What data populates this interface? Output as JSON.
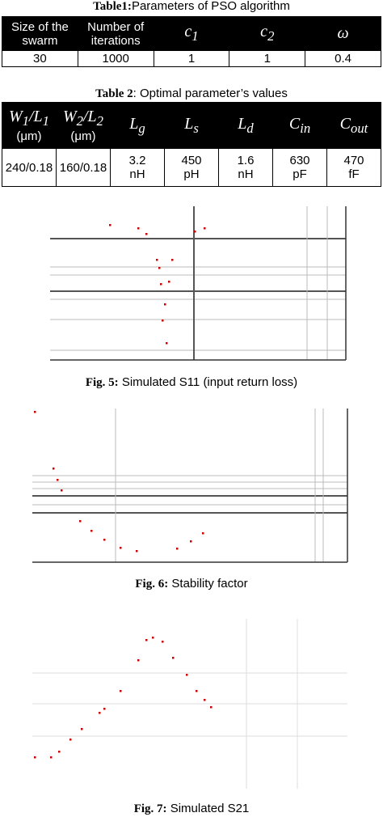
{
  "table1": {
    "label": "Table1:",
    "title": "Parameters of PSO algorithm",
    "headers": [
      "Size of the swarm",
      "Number of iterations",
      {
        "parts": [
          {
            "text": "c"
          },
          {
            "sub": "1"
          }
        ]
      },
      {
        "parts": [
          {
            "text": "c"
          },
          {
            "sub": "2"
          }
        ]
      },
      {
        "parts": [
          {
            "text": "ω"
          }
        ]
      }
    ],
    "rows": [
      [
        "30",
        "1000",
        "1",
        "1",
        "0.4"
      ]
    ]
  },
  "table2": {
    "label": "Table 2",
    "title": ": Optimal parameter’s values",
    "headers": [
      {
        "parts": [
          {
            "text": "W"
          },
          {
            "sub": "1"
          },
          {
            "text": "/"
          },
          {
            "text": "L"
          },
          {
            "sub": "1"
          }
        ],
        "unit": "(μm)"
      },
      {
        "parts": [
          {
            "text": "W"
          },
          {
            "sub": "2"
          },
          {
            "text": "/"
          },
          {
            "text": "L"
          },
          {
            "sub": "2"
          }
        ],
        "unit": "(μm)"
      },
      {
        "parts": [
          {
            "text": "L"
          },
          {
            "sub": "g"
          }
        ]
      },
      {
        "parts": [
          {
            "text": "L"
          },
          {
            "sub": "s"
          }
        ]
      },
      {
        "parts": [
          {
            "text": "L"
          },
          {
            "sub": "d"
          }
        ]
      },
      {
        "parts": [
          {
            "text": "C"
          },
          {
            "sub": "in"
          }
        ]
      },
      {
        "parts": [
          {
            "text": "C"
          },
          {
            "sub": "out"
          }
        ]
      }
    ],
    "rows": [
      [
        "240/0.18",
        "160/0.18",
        "3.2 nH",
        "450 pH",
        "1.6 nH",
        "630 pF",
        "470 fF"
      ]
    ]
  },
  "figures": [
    {
      "label": "Fig. 5:",
      "caption": "Simulated S11 (input return loss)"
    },
    {
      "label": "Fig. 6:",
      "caption": "Stability factor"
    },
    {
      "label": "Fig. 7:",
      "caption": "Simulated S21"
    }
  ]
}
